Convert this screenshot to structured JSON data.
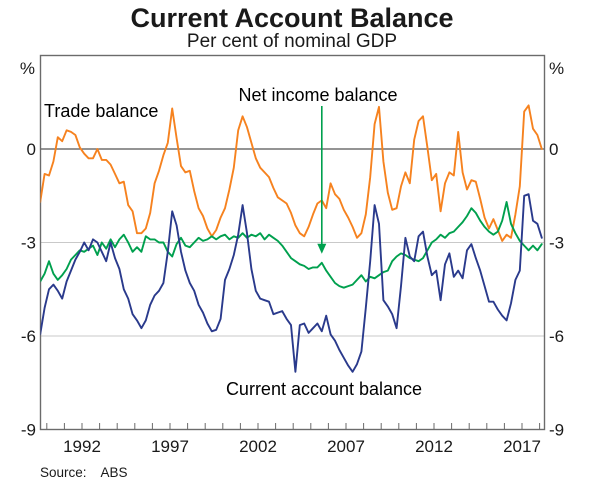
{
  "header": {
    "title": "Current Account Balance",
    "subtitle": "Per cent of nominal GDP"
  },
  "footer": {
    "source_label": "Source:",
    "source_value": "ABS"
  },
  "axes": {
    "unit_left": "%",
    "unit_right": "%",
    "y_tick_values": [
      0,
      -3,
      -6,
      -9
    ],
    "x_tick_labels": [
      1992,
      1997,
      2002,
      2007,
      2012,
      2017
    ],
    "x_minor_tick_years": [
      1990,
      1991,
      1992,
      1993,
      1994,
      1995,
      1996,
      1997,
      1998,
      1999,
      2000,
      2001,
      2002,
      2003,
      2004,
      2005,
      2006,
      2007,
      2008,
      2009,
      2010,
      2011,
      2012,
      2013,
      2014,
      2015,
      2016,
      2017,
      2018
    ]
  },
  "colors": {
    "trade": "#F6821F",
    "income": "#00A04E",
    "cab": "#2A3A8C",
    "grid_light": "#c9c9c9",
    "grid_zero": "#545454",
    "border": "#6b6b6b",
    "text": "#1a1a1a"
  },
  "chart_data": {
    "type": "line",
    "title": "Current Account Balance",
    "subtitle": "Per cent of nominal GDP",
    "xlabel": "",
    "ylabel": "Per cent of nominal GDP",
    "x_start": 1989.625,
    "x_step": 0.25,
    "xlim": [
      1989.6,
      2018.55
    ],
    "ylim": [
      -9,
      3
    ],
    "grid_y": [
      0,
      -3,
      -6
    ],
    "legend_position": "inline-labels",
    "annotation": {
      "text": "Net income balance",
      "arrow_target_series": "Net income balance",
      "arrow_target_x": 2005.625
    },
    "series": [
      {
        "name": "Trade balance",
        "color": "#F6821F",
        "values": [
          -1.7,
          -0.8,
          -0.85,
          -0.4,
          0.38,
          0.25,
          0.6,
          0.55,
          0.45,
          0.05,
          -0.15,
          -0.3,
          -0.3,
          0.0,
          -0.35,
          -0.35,
          -0.5,
          -0.8,
          -1.1,
          -1.05,
          -1.8,
          -2.0,
          -2.7,
          -2.7,
          -2.55,
          -2.05,
          -1.1,
          -0.7,
          -0.2,
          0.2,
          1.3,
          0.35,
          -0.55,
          -0.75,
          -0.7,
          -1.35,
          -1.9,
          -2.15,
          -2.55,
          -2.8,
          -2.6,
          -2.2,
          -1.9,
          -1.3,
          -0.6,
          0.6,
          1.05,
          0.7,
          0.2,
          -0.3,
          -0.6,
          -0.75,
          -0.9,
          -1.25,
          -1.55,
          -1.65,
          -1.75,
          -2.05,
          -2.45,
          -2.7,
          -2.8,
          -2.5,
          -2.1,
          -1.75,
          -1.65,
          -1.9,
          -1.1,
          -1.45,
          -1.6,
          -1.95,
          -2.2,
          -2.5,
          -2.85,
          -2.7,
          -2.1,
          -0.9,
          0.8,
          1.35,
          -0.4,
          -1.4,
          -1.95,
          -1.9,
          -1.2,
          -0.75,
          -1.1,
          0.3,
          0.9,
          1.05,
          0.05,
          -1.0,
          -0.8,
          -2.0,
          -1.1,
          -0.75,
          -0.85,
          0.55,
          -0.75,
          -1.3,
          -1.0,
          -1.05,
          -1.6,
          -2.2,
          -2.55,
          -2.25,
          -2.6,
          -2.95,
          -2.75,
          -2.85,
          -2.1,
          -1.2,
          1.2,
          1.4,
          0.65,
          0.45,
          0.0
        ]
      },
      {
        "name": "Net income balance",
        "color": "#00A04E",
        "values": [
          -4.25,
          -4.0,
          -3.6,
          -4.0,
          -4.2,
          -4.05,
          -3.85,
          -3.55,
          -3.4,
          -3.25,
          -3.3,
          -3.2,
          -3.1,
          -3.4,
          -3.0,
          -3.2,
          -2.9,
          -3.15,
          -2.9,
          -2.75,
          -3.0,
          -3.3,
          -3.15,
          -3.3,
          -2.8,
          -2.9,
          -2.9,
          -3.0,
          -3.0,
          -3.3,
          -3.45,
          -3.05,
          -2.85,
          -3.1,
          -3.15,
          -3.0,
          -2.85,
          -2.95,
          -2.9,
          -2.8,
          -2.9,
          -2.8,
          -2.75,
          -2.9,
          -2.8,
          -2.85,
          -2.7,
          -2.85,
          -2.75,
          -2.8,
          -2.7,
          -2.9,
          -2.75,
          -2.85,
          -2.95,
          -3.1,
          -3.3,
          -3.5,
          -3.6,
          -3.7,
          -3.75,
          -3.85,
          -3.8,
          -3.8,
          -3.65,
          -3.9,
          -4.1,
          -4.3,
          -4.4,
          -4.45,
          -4.4,
          -4.35,
          -4.2,
          -4.05,
          -4.25,
          -4.1,
          -4.15,
          -4.05,
          -3.95,
          -3.9,
          -3.6,
          -3.45,
          -3.35,
          -3.4,
          -3.5,
          -3.55,
          -3.6,
          -3.5,
          -3.25,
          -3.0,
          -2.9,
          -2.75,
          -2.85,
          -2.7,
          -2.65,
          -2.5,
          -2.35,
          -2.15,
          -1.9,
          -2.05,
          -2.3,
          -2.5,
          -2.65,
          -2.75,
          -2.65,
          -2.3,
          -1.7,
          -2.4,
          -2.7,
          -2.95,
          -3.1,
          -3.25,
          -3.1,
          -3.25,
          -3.05
        ]
      },
      {
        "name": "Current account balance",
        "color": "#2A3A8C",
        "values": [
          -5.95,
          -5.1,
          -4.5,
          -4.35,
          -4.55,
          -4.8,
          -4.25,
          -3.9,
          -3.55,
          -3.3,
          -3.0,
          -3.25,
          -2.9,
          -3.0,
          -3.3,
          -3.6,
          -3.0,
          -3.5,
          -3.85,
          -4.5,
          -4.8,
          -5.3,
          -5.5,
          -5.75,
          -5.5,
          -5.0,
          -4.7,
          -4.55,
          -4.3,
          -3.3,
          -2.0,
          -2.45,
          -3.3,
          -3.9,
          -4.3,
          -4.55,
          -5.0,
          -5.25,
          -5.6,
          -5.85,
          -5.8,
          -5.45,
          -4.2,
          -3.85,
          -3.4,
          -2.75,
          -1.8,
          -2.7,
          -3.85,
          -4.55,
          -4.8,
          -4.85,
          -4.9,
          -5.3,
          -5.25,
          -5.2,
          -5.45,
          -5.65,
          -7.15,
          -5.65,
          -5.6,
          -5.9,
          -5.75,
          -5.6,
          -5.85,
          -5.35,
          -5.95,
          -6.15,
          -6.45,
          -6.7,
          -6.95,
          -7.15,
          -6.9,
          -6.5,
          -5.1,
          -3.6,
          -1.8,
          -2.4,
          -4.85,
          -5.05,
          -5.3,
          -5.75,
          -4.4,
          -2.85,
          -3.45,
          -3.6,
          -2.8,
          -2.65,
          -3.45,
          -4.05,
          -3.9,
          -4.85,
          -3.7,
          -3.35,
          -4.1,
          -3.9,
          -4.15,
          -3.25,
          -3.05,
          -3.5,
          -3.9,
          -4.4,
          -4.9,
          -4.9,
          -5.15,
          -5.35,
          -5.5,
          -4.95,
          -4.2,
          -3.9,
          -1.5,
          -1.45,
          -2.3,
          -2.4,
          -2.85
        ]
      }
    ]
  }
}
